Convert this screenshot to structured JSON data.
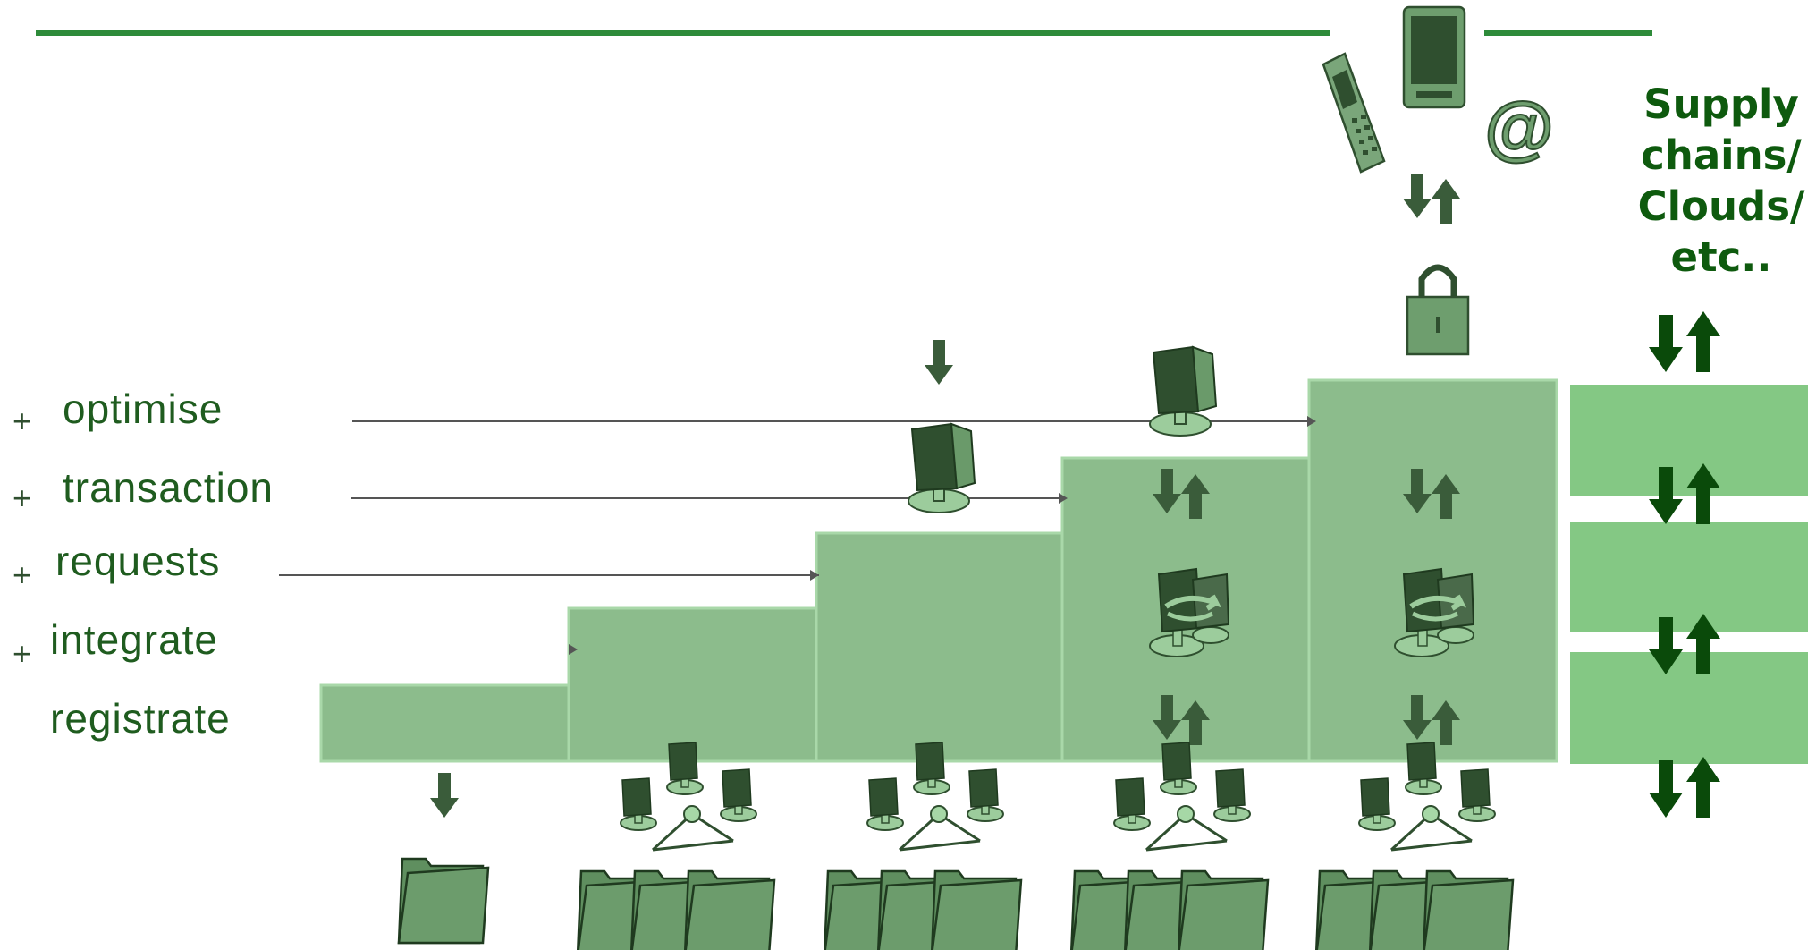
{
  "levels": [
    {
      "label": "optimise",
      "plus": "+"
    },
    {
      "label": "transaction",
      "plus": "+"
    },
    {
      "label": "requests",
      "plus": "+"
    },
    {
      "label": "integrate",
      "plus": "+"
    },
    {
      "label": "registrate",
      "plus": ""
    }
  ],
  "side_title": {
    "line1": "Supply",
    "line2": "chains/",
    "line3": "Clouds/",
    "line4": "etc.."
  },
  "icons": {
    "email_symbol": "@"
  },
  "colors": {
    "step_fill": "#8cbc8c",
    "step_edge": "#a9d8a9",
    "side_block": "#84c884",
    "dark_icon": "#3a5c3a",
    "arrow_dark": "#0a4a0a",
    "rule_line": "#2e8b3a",
    "text": "#1f5c1f"
  }
}
